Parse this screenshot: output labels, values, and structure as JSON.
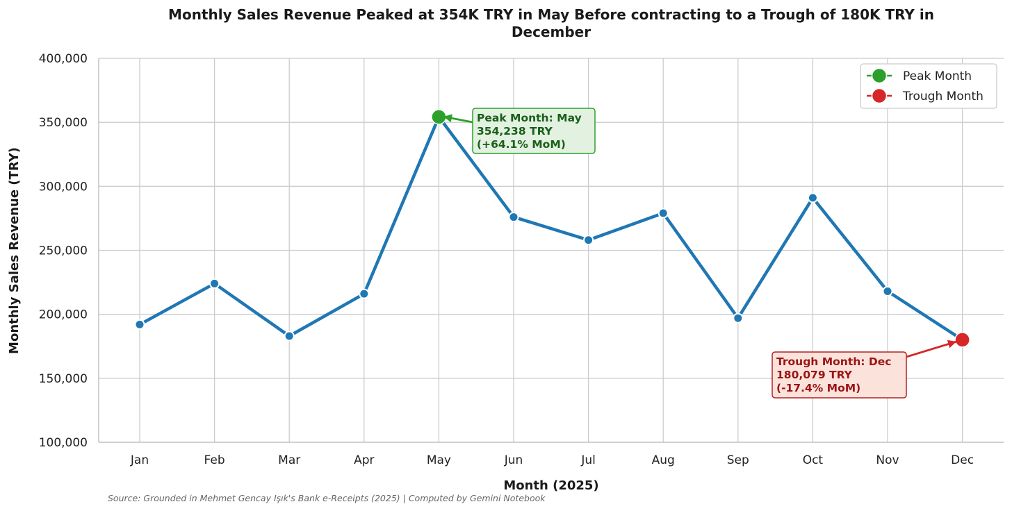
{
  "chart_data": {
    "type": "line",
    "title": "Monthly Sales Revenue Peaked at 354K TRY in May Before contracting to a Trough of 180K TRY in December",
    "title_lines": [
      "Monthly Sales Revenue Peaked at 354K TRY in May Before contracting to a Trough of 180K TRY in",
      "December"
    ],
    "xlabel": "Month (2025)",
    "ylabel": "Monthly Sales Revenue (TRY)",
    "categories": [
      "Jan",
      "Feb",
      "Mar",
      "Apr",
      "May",
      "Jun",
      "Jul",
      "Aug",
      "Sep",
      "Oct",
      "Nov",
      "Dec"
    ],
    "series": [
      {
        "values": [
          192000,
          224000,
          183000,
          216000,
          354238,
          276000,
          258000,
          279000,
          197000,
          291000,
          218000,
          180079
        ],
        "color": "#1f77b4"
      }
    ],
    "ylim": [
      100000,
      400000
    ],
    "yticks": [
      100000,
      150000,
      200000,
      250000,
      300000,
      350000,
      400000
    ],
    "ytick_labels": [
      "100,000",
      "150,000",
      "200,000",
      "250,000",
      "300,000",
      "350,000",
      "400,000"
    ],
    "grid": true,
    "legend": {
      "position": "top-right",
      "entries": [
        {
          "label": "Peak Month",
          "color": "#2ca02c"
        },
        {
          "label": "Trough Month",
          "color": "#d62728"
        }
      ]
    },
    "annotations": [
      {
        "kind": "peak",
        "month_index": 4,
        "lines": [
          "Peak Month: May",
          "354,238 TRY",
          "(+64.1% MoM)"
        ],
        "text_color": "#1a5e1a",
        "box_fill": "#e3f1e1",
        "box_stroke": "#2ca02c",
        "arrow_color": "#2ca02c"
      },
      {
        "kind": "trough",
        "month_index": 11,
        "lines": [
          "Trough Month: Dec",
          "180,079 TRY",
          "(-17.4% MoM)"
        ],
        "text_color": "#9a1414",
        "box_fill": "#fbe3dc",
        "box_stroke": "#b22222",
        "arrow_color": "#d62728"
      }
    ],
    "source": "Source: Grounded in Mehmet Gencay Işık's Bank e-Receipts (2025) | Computed by Gemini Notebook"
  }
}
